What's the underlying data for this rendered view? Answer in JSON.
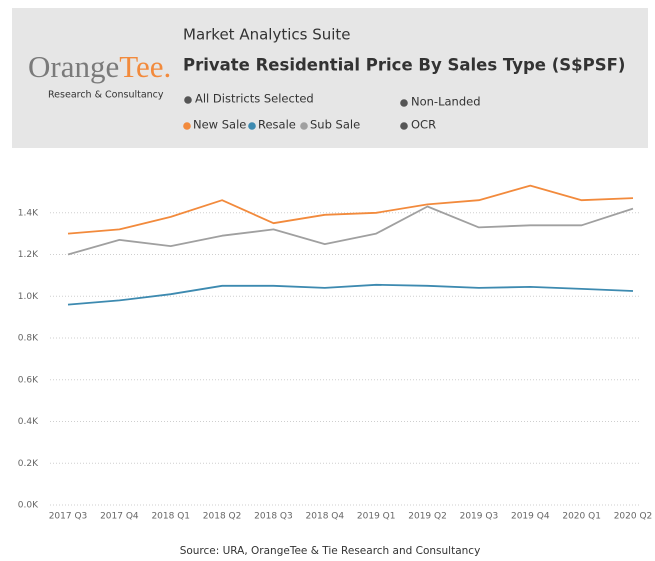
{
  "header": {
    "logo": {
      "part1": "Orange",
      "part2": "Tee.",
      "tagline": "Research & Consultancy"
    },
    "suite": "Market Analytics Suite",
    "filters": [
      "All Districts Selected",
      "Non-Landed",
      "OCR"
    ]
  },
  "chart_data": {
    "type": "line",
    "title": "Private Residential Price By Sales Type (S$PSF)",
    "categories": [
      "2017 Q3",
      "2017 Q4",
      "2018 Q1",
      "2018 Q2",
      "2018 Q3",
      "2018 Q4",
      "2019 Q1",
      "2019 Q2",
      "2019 Q3",
      "2019 Q4",
      "2020 Q1",
      "2020 Q2"
    ],
    "series": [
      {
        "name": "New Sale",
        "color": "#f28a3c",
        "values": [
          1300,
          1320,
          1380,
          1460,
          1350,
          1390,
          1400,
          1440,
          1460,
          1530,
          1460,
          1470
        ]
      },
      {
        "name": "Resale",
        "color": "#3d8ab0",
        "values": [
          960,
          980,
          1010,
          1050,
          1050,
          1040,
          1055,
          1050,
          1040,
          1045,
          1035,
          1025
        ]
      },
      {
        "name": "Sub Sale",
        "color": "#a0a0a0",
        "values": [
          1200,
          1270,
          1240,
          1290,
          1320,
          1250,
          1300,
          1430,
          1330,
          1340,
          1340,
          1420
        ]
      }
    ],
    "ylim": [
      0,
      1600
    ],
    "yticks": [
      {
        "value": 0,
        "label": "0.0K"
      },
      {
        "value": 200,
        "label": "0.2K"
      },
      {
        "value": 400,
        "label": "0.4K"
      },
      {
        "value": 600,
        "label": "0.6K"
      },
      {
        "value": 800,
        "label": "0.8K"
      },
      {
        "value": 1000,
        "label": "1.0K"
      },
      {
        "value": 1200,
        "label": "1.2K"
      },
      {
        "value": 1400,
        "label": "1.4K"
      }
    ],
    "grid": true,
    "source": "Source: URA, OrangeTee & Tie Research and Consultancy"
  }
}
